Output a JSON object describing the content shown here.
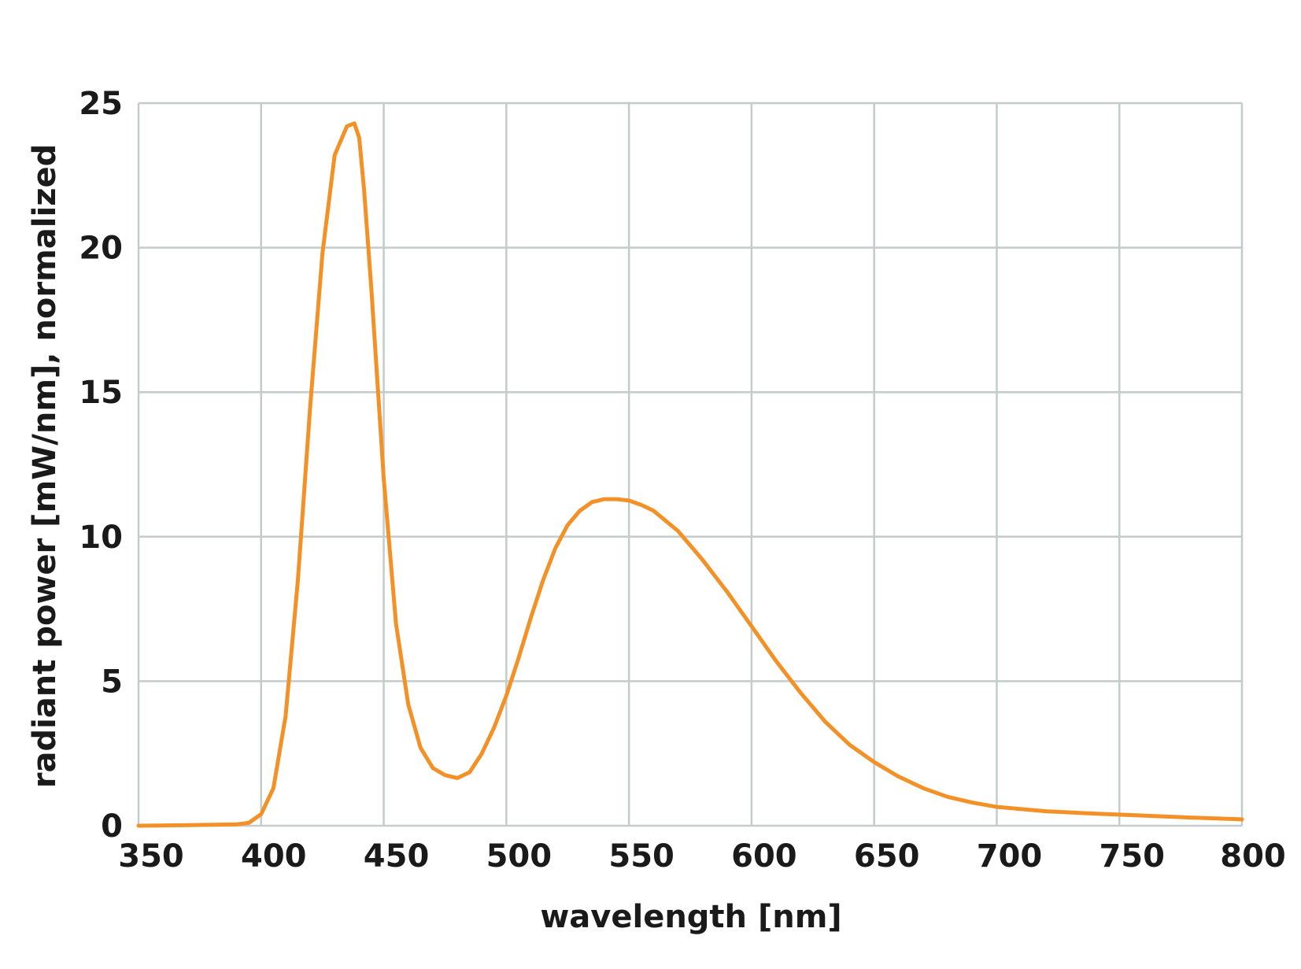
{
  "chart_data": {
    "type": "line",
    "title": "",
    "xlabel": "wavelength [nm]",
    "ylabel": "radiant power [mW/nm], normalized",
    "xlim": [
      350,
      800
    ],
    "ylim": [
      0,
      25
    ],
    "x_ticks": [
      "350",
      "400",
      "450",
      "500",
      "550",
      "600",
      "650",
      "700",
      "750",
      "800"
    ],
    "y_ticks": [
      "0",
      "5",
      "10",
      "15",
      "20",
      "25"
    ],
    "grid": true,
    "line_color": "#f39127",
    "series": [
      {
        "x": [
          350,
          370,
          390,
          395,
          400,
          405,
          410,
          415,
          420,
          425,
          430,
          435,
          438,
          440,
          442,
          445,
          450,
          455,
          460,
          465,
          470,
          475,
          480,
          485,
          490,
          495,
          500,
          505,
          510,
          515,
          520,
          525,
          530,
          535,
          540,
          545,
          550,
          555,
          560,
          570,
          580,
          590,
          600,
          610,
          620,
          630,
          640,
          650,
          660,
          670,
          680,
          690,
          700,
          720,
          740,
          760,
          780,
          800
        ],
        "y": [
          0.0,
          0.02,
          0.05,
          0.1,
          0.4,
          1.3,
          3.8,
          8.5,
          14.5,
          19.8,
          23.2,
          24.2,
          24.3,
          23.8,
          22.0,
          18.5,
          12.0,
          7.0,
          4.2,
          2.7,
          2.0,
          1.75,
          1.65,
          1.85,
          2.5,
          3.4,
          4.5,
          5.8,
          7.2,
          8.5,
          9.6,
          10.4,
          10.9,
          11.2,
          11.3,
          11.3,
          11.25,
          11.1,
          10.9,
          10.2,
          9.2,
          8.1,
          6.9,
          5.7,
          4.6,
          3.6,
          2.8,
          2.2,
          1.7,
          1.3,
          1.0,
          0.8,
          0.65,
          0.5,
          0.42,
          0.35,
          0.28,
          0.22
        ]
      }
    ]
  }
}
